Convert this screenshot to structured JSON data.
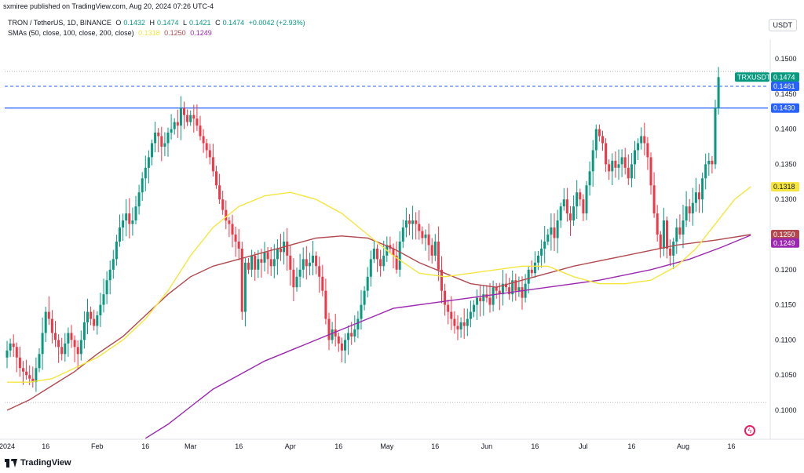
{
  "header": {
    "published": "sxmiree published on TradingView.com, Aug 20, 2024 07:26 UTC-4",
    "symbol": "TRON / TetherUS, 1D, BINANCE",
    "o_label": "O",
    "o_value": "0.1432",
    "h_label": "H",
    "h_value": "0.1474",
    "l_label": "L",
    "l_value": "0.1421",
    "c_label": "C",
    "c_value": "0.1474",
    "change": "+0.0042 (+2.93%)",
    "sma_label": "SMAs (50, close, 100, close, 200, close)",
    "sma50_value": "0.1318",
    "sma100_value": "0.1250",
    "sma200_value": "0.1249",
    "currency_button": "USDT"
  },
  "footer": {
    "brand": "TradingView"
  },
  "chart_data": {
    "type": "candlestick",
    "ylim": [
      0.0975,
      0.154
    ],
    "y_ticks": [
      "0.1500",
      "0.1450",
      "0.1400",
      "0.1350",
      "0.1300",
      "0.1200",
      "0.1150",
      "0.1100",
      "0.1050",
      "0.1000"
    ],
    "x_ticks": [
      {
        "label": "2024",
        "i": 0
      },
      {
        "label": "16",
        "i": 12
      },
      {
        "label": "Feb",
        "i": 28
      },
      {
        "label": "16",
        "i": 43
      },
      {
        "label": "Mar",
        "i": 57
      },
      {
        "label": "16",
        "i": 72
      },
      {
        "label": "Apr",
        "i": 88
      },
      {
        "label": "16",
        "i": 103
      },
      {
        "label": "May",
        "i": 118
      },
      {
        "label": "16",
        "i": 133
      },
      {
        "label": "Jun",
        "i": 149
      },
      {
        "label": "16",
        "i": 164
      },
      {
        "label": "Jul",
        "i": 179
      },
      {
        "label": "16",
        "i": 194
      },
      {
        "label": "Aug",
        "i": 210
      },
      {
        "label": "16",
        "i": 225
      }
    ],
    "closes": [
      0.1085,
      0.1095,
      0.109,
      0.1075,
      0.106,
      0.1055,
      0.105,
      0.1045,
      0.104,
      0.106,
      0.108,
      0.111,
      0.114,
      0.113,
      0.111,
      0.11,
      0.109,
      0.108,
      0.1095,
      0.111,
      0.11,
      0.109,
      0.108,
      0.11,
      0.1125,
      0.114,
      0.113,
      0.112,
      0.1135,
      0.115,
      0.1165,
      0.1185,
      0.12,
      0.1215,
      0.124,
      0.126,
      0.127,
      0.128,
      0.1265,
      0.127,
      0.129,
      0.131,
      0.133,
      0.1345,
      0.136,
      0.138,
      0.1395,
      0.139,
      0.1375,
      0.138,
      0.1395,
      0.14,
      0.141,
      0.1405,
      0.143,
      0.142,
      0.141,
      0.142,
      0.1415,
      0.1405,
      0.139,
      0.138,
      0.137,
      0.136,
      0.134,
      0.132,
      0.13,
      0.1285,
      0.127,
      0.1265,
      0.125,
      0.124,
      0.123,
      0.114,
      0.121,
      0.12,
      0.122,
      0.12,
      0.1215,
      0.121,
      0.1225,
      0.1215,
      0.1205,
      0.1215,
      0.123,
      0.1225,
      0.124,
      0.122,
      0.12,
      0.1175,
      0.119,
      0.12,
      0.1215,
      0.1205,
      0.121,
      0.122,
      0.1205,
      0.119,
      0.117,
      0.113,
      0.11,
      0.1115,
      0.1105,
      0.1095,
      0.1085,
      0.11,
      0.111,
      0.1105,
      0.1115,
      0.113,
      0.115,
      0.117,
      0.119,
      0.1215,
      0.123,
      0.1215,
      0.1205,
      0.122,
      0.1235,
      0.123,
      0.122,
      0.12,
      0.124,
      0.126,
      0.127,
      0.1265,
      0.127,
      0.1265,
      0.1255,
      0.1245,
      0.125,
      0.1235,
      0.122,
      0.124,
      0.12,
      0.117,
      0.115,
      0.114,
      0.113,
      0.112,
      0.1115,
      0.1125,
      0.112,
      0.113,
      0.114,
      0.115,
      0.116,
      0.1155,
      0.1165,
      0.116,
      0.115,
      0.1175,
      0.117,
      0.1165,
      0.118,
      0.1175,
      0.1165,
      0.1185,
      0.117,
      0.1175,
      0.116,
      0.118,
      0.12,
      0.1195,
      0.121,
      0.122,
      0.123,
      0.124,
      0.125,
      0.126,
      0.1245,
      0.127,
      0.129,
      0.13,
      0.128,
      0.127,
      0.129,
      0.131,
      0.13,
      0.128,
      0.132,
      0.134,
      0.137,
      0.14,
      0.139,
      0.138,
      0.135,
      0.134,
      0.1355,
      0.1345,
      0.135,
      0.136,
      0.1345,
      0.133,
      0.135,
      0.137,
      0.138,
      0.139,
      0.138,
      0.136,
      0.132,
      0.128,
      0.125,
      0.123,
      0.127,
      0.123,
      0.122,
      0.124,
      0.126,
      0.125,
      0.127,
      0.129,
      0.128,
      0.1295,
      0.131,
      0.13,
      0.133,
      0.135,
      0.1355,
      0.135,
      0.143,
      0.1474
    ],
    "sma50": [
      0.104,
      0.104,
      0.1045,
      0.106,
      0.1075,
      0.11,
      0.113,
      0.117,
      0.122,
      0.126,
      0.129,
      0.1305,
      0.131,
      0.13,
      0.128,
      0.125,
      0.122,
      0.1195,
      0.119,
      0.1195,
      0.12,
      0.1205,
      0.1205,
      0.119,
      0.118,
      0.118,
      0.1185,
      0.1205,
      0.123,
      0.1265,
      0.13,
      0.1318
    ],
    "sma50_i": [
      0,
      7,
      14,
      21,
      28,
      36,
      43,
      50,
      57,
      64,
      72,
      80,
      88,
      96,
      104,
      112,
      120,
      128,
      136,
      144,
      152,
      160,
      168,
      176,
      184,
      192,
      200,
      208,
      214,
      220,
      226,
      231
    ],
    "sma100": [
      0.1,
      0.1015,
      0.1035,
      0.1055,
      0.108,
      0.1105,
      0.1135,
      0.1165,
      0.119,
      0.1205,
      0.1215,
      0.1225,
      0.1235,
      0.1245,
      0.1248,
      0.1245,
      0.123,
      0.121,
      0.1195,
      0.118,
      0.1175,
      0.1185,
      0.1195,
      0.1205,
      0.122,
      0.1235,
      0.1242,
      0.125
    ],
    "sma100_i": [
      0,
      7,
      14,
      21,
      28,
      36,
      43,
      50,
      57,
      64,
      72,
      80,
      88,
      96,
      104,
      112,
      120,
      128,
      136,
      144,
      152,
      160,
      168,
      176,
      192,
      208,
      220,
      231
    ],
    "sma200": [
      0.096,
      0.098,
      0.1005,
      0.103,
      0.105,
      0.107,
      0.1085,
      0.11,
      0.1115,
      0.113,
      0.1145,
      0.1155,
      0.1165,
      0.1175,
      0.1185,
      0.12,
      0.1215,
      0.1232,
      0.1249
    ],
    "sma200_i": [
      43,
      50,
      57,
      64,
      72,
      80,
      88,
      96,
      104,
      112,
      120,
      136,
      152,
      168,
      184,
      200,
      212,
      222,
      231
    ],
    "price_labels": [
      {
        "id": "trx",
        "ticker": "TRXUSDT",
        "value": "0.1474",
        "y": 0.1474,
        "color": "#089981"
      },
      {
        "id": "dash",
        "value": "0.1461",
        "y": 0.1461,
        "color": "#2962ff"
      },
      {
        "id": "hline",
        "value": "0.1430",
        "y": 0.143,
        "color": "#2962ff"
      },
      {
        "id": "sma50",
        "value": "0.1318",
        "y": 0.1318,
        "color": "#f5e63d"
      },
      {
        "id": "sma100",
        "value": "0.1250",
        "y": 0.125,
        "color": "#b2494f"
      },
      {
        "id": "sma200",
        "value": "0.1249",
        "y": 0.1238,
        "color": "#9c27b0"
      }
    ],
    "horizontal_line": 0.143,
    "dashed_line": 0.1461,
    "dotted_lines": [
      0.1482,
      0.1011
    ],
    "colors": {
      "up": "#089981",
      "down": "#f23645",
      "sma50": "#f5e63d",
      "sma100": "#b2494f",
      "sma200": "#9c27b0",
      "hline": "#2962ff"
    }
  }
}
